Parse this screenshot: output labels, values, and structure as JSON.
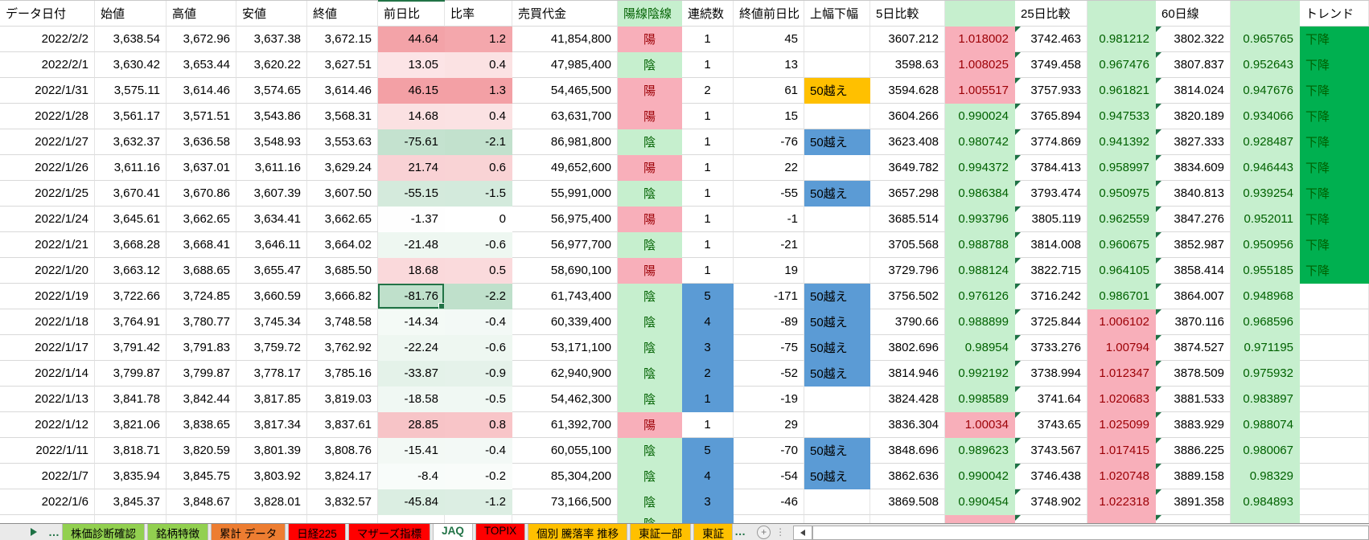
{
  "table": {
    "columns": [
      {
        "id": "date",
        "label": "データ日付"
      },
      {
        "id": "open",
        "label": "始値"
      },
      {
        "id": "high",
        "label": "高値"
      },
      {
        "id": "low",
        "label": "安値"
      },
      {
        "id": "close",
        "label": "終値"
      },
      {
        "id": "diff",
        "label": "前日比"
      },
      {
        "id": "ratio",
        "label": "比率"
      },
      {
        "id": "volume",
        "label": "売買代金"
      },
      {
        "id": "candle",
        "label": "陽線陰線"
      },
      {
        "id": "streak",
        "label": "連続数"
      },
      {
        "id": "close_diff",
        "label": "終値前日比"
      },
      {
        "id": "range",
        "label": "上幅下幅"
      },
      {
        "id": "d5",
        "label": "5日比較"
      },
      {
        "id": "d5r",
        "label": ""
      },
      {
        "id": "d25",
        "label": "25日比較"
      },
      {
        "id": "d25r",
        "label": ""
      },
      {
        "id": "d60",
        "label": "60日線"
      },
      {
        "id": "d60r",
        "label": ""
      },
      {
        "id": "trend",
        "label": "トレンド"
      }
    ],
    "rows": [
      {
        "date": "2022/2/2",
        "open": "3,638.54",
        "high": "3,672.96",
        "low": "3,637.38",
        "close": "3,672.15",
        "diff": "44.64",
        "ratio": "1.2",
        "volume": "41,854,800",
        "candle": "陽",
        "streak": "1",
        "streak_blue": false,
        "close_diff": "45",
        "range": "",
        "range_color": "",
        "d5": "3607.212",
        "d5r": "1.018002",
        "d25": "3742.463",
        "d25r": "0.981212",
        "d60": "3802.322",
        "d60r": "0.965765",
        "trend": "下降",
        "selected": false
      },
      {
        "date": "2022/2/1",
        "open": "3,630.42",
        "high": "3,653.44",
        "low": "3,620.22",
        "close": "3,627.51",
        "diff": "13.05",
        "ratio": "0.4",
        "volume": "47,985,400",
        "candle": "陰",
        "streak": "1",
        "streak_blue": false,
        "close_diff": "13",
        "range": "",
        "range_color": "",
        "d5": "3598.63",
        "d5r": "1.008025",
        "d25": "3749.458",
        "d25r": "0.967476",
        "d60": "3807.837",
        "d60r": "0.952643",
        "trend": "下降",
        "selected": false
      },
      {
        "date": "2022/1/31",
        "open": "3,575.11",
        "high": "3,614.46",
        "low": "3,574.65",
        "close": "3,614.46",
        "diff": "46.15",
        "ratio": "1.3",
        "volume": "54,465,500",
        "candle": "陽",
        "streak": "2",
        "streak_blue": false,
        "close_diff": "61",
        "range": "50越え",
        "range_color": "gold",
        "d5": "3594.628",
        "d5r": "1.005517",
        "d25": "3757.933",
        "d25r": "0.961821",
        "d60": "3814.024",
        "d60r": "0.947676",
        "trend": "下降",
        "selected": false
      },
      {
        "date": "2022/1/28",
        "open": "3,561.17",
        "high": "3,571.51",
        "low": "3,543.86",
        "close": "3,568.31",
        "diff": "14.68",
        "ratio": "0.4",
        "volume": "63,631,700",
        "candle": "陽",
        "streak": "1",
        "streak_blue": false,
        "close_diff": "15",
        "range": "",
        "range_color": "",
        "d5": "3604.266",
        "d5r": "0.990024",
        "d25": "3765.894",
        "d25r": "0.947533",
        "d60": "3820.189",
        "d60r": "0.934066",
        "trend": "下降",
        "selected": false
      },
      {
        "date": "2022/1/27",
        "open": "3,632.37",
        "high": "3,636.58",
        "low": "3,548.93",
        "close": "3,553.63",
        "diff": "-75.61",
        "ratio": "-2.1",
        "volume": "86,981,800",
        "candle": "陰",
        "streak": "1",
        "streak_blue": false,
        "close_diff": "-76",
        "range": "50越え",
        "range_color": "blue",
        "d5": "3623.408",
        "d5r": "0.980742",
        "d25": "3774.869",
        "d25r": "0.941392",
        "d60": "3827.333",
        "d60r": "0.928487",
        "trend": "下降",
        "selected": false
      },
      {
        "date": "2022/1/26",
        "open": "3,611.16",
        "high": "3,637.01",
        "low": "3,611.16",
        "close": "3,629.24",
        "diff": "21.74",
        "ratio": "0.6",
        "volume": "49,652,600",
        "candle": "陽",
        "streak": "1",
        "streak_blue": false,
        "close_diff": "22",
        "range": "",
        "range_color": "",
        "d5": "3649.782",
        "d5r": "0.994372",
        "d25": "3784.413",
        "d25r": "0.958997",
        "d60": "3834.609",
        "d60r": "0.946443",
        "trend": "下降",
        "selected": false
      },
      {
        "date": "2022/1/25",
        "open": "3,670.41",
        "high": "3,670.86",
        "low": "3,607.39",
        "close": "3,607.50",
        "diff": "-55.15",
        "ratio": "-1.5",
        "volume": "55,991,000",
        "candle": "陰",
        "streak": "1",
        "streak_blue": false,
        "close_diff": "-55",
        "range": "50越え",
        "range_color": "blue",
        "d5": "3657.298",
        "d5r": "0.986384",
        "d25": "3793.474",
        "d25r": "0.950975",
        "d60": "3840.813",
        "d60r": "0.939254",
        "trend": "下降",
        "selected": false
      },
      {
        "date": "2022/1/24",
        "open": "3,645.61",
        "high": "3,662.65",
        "low": "3,634.41",
        "close": "3,662.65",
        "diff": "-1.37",
        "ratio": "0",
        "volume": "56,975,400",
        "candle": "陽",
        "streak": "1",
        "streak_blue": false,
        "close_diff": "-1",
        "range": "",
        "range_color": "",
        "d5": "3685.514",
        "d5r": "0.993796",
        "d25": "3805.119",
        "d25r": "0.962559",
        "d60": "3847.276",
        "d60r": "0.952011",
        "trend": "下降",
        "selected": false
      },
      {
        "date": "2022/1/21",
        "open": "3,668.28",
        "high": "3,668.41",
        "low": "3,646.11",
        "close": "3,664.02",
        "diff": "-21.48",
        "ratio": "-0.6",
        "volume": "56,977,700",
        "candle": "陰",
        "streak": "1",
        "streak_blue": false,
        "close_diff": "-21",
        "range": "",
        "range_color": "",
        "d5": "3705.568",
        "d5r": "0.988788",
        "d25": "3814.008",
        "d25r": "0.960675",
        "d60": "3852.987",
        "d60r": "0.950956",
        "trend": "下降",
        "selected": false
      },
      {
        "date": "2022/1/20",
        "open": "3,663.12",
        "high": "3,688.65",
        "low": "3,655.47",
        "close": "3,685.50",
        "diff": "18.68",
        "ratio": "0.5",
        "volume": "58,690,100",
        "candle": "陽",
        "streak": "1",
        "streak_blue": false,
        "close_diff": "19",
        "range": "",
        "range_color": "",
        "d5": "3729.796",
        "d5r": "0.988124",
        "d25": "3822.715",
        "d25r": "0.964105",
        "d60": "3858.414",
        "d60r": "0.955185",
        "trend": "下降",
        "selected": false
      },
      {
        "date": "2022/1/19",
        "open": "3,722.66",
        "high": "3,724.85",
        "low": "3,660.59",
        "close": "3,666.82",
        "diff": "-81.76",
        "ratio": "-2.2",
        "volume": "61,743,400",
        "candle": "陰",
        "streak": "5",
        "streak_blue": true,
        "close_diff": "-171",
        "range": "50越え",
        "range_color": "blue",
        "d5": "3756.502",
        "d5r": "0.976126",
        "d25": "3716.242",
        "d25r": "0.986701",
        "d60": "3864.007",
        "d60r": "0.948968",
        "trend": "",
        "selected": true
      },
      {
        "date": "2022/1/18",
        "open": "3,764.91",
        "high": "3,780.77",
        "low": "3,745.34",
        "close": "3,748.58",
        "diff": "-14.34",
        "ratio": "-0.4",
        "volume": "60,339,400",
        "candle": "陰",
        "streak": "4",
        "streak_blue": true,
        "close_diff": "-89",
        "range": "50越え",
        "range_color": "blue",
        "d5": "3790.66",
        "d5r": "0.988899",
        "d25": "3725.844",
        "d25r": "1.006102",
        "d60": "3870.116",
        "d60r": "0.968596",
        "trend": "",
        "selected": false
      },
      {
        "date": "2022/1/17",
        "open": "3,791.42",
        "high": "3,791.83",
        "low": "3,759.72",
        "close": "3,762.92",
        "diff": "-22.24",
        "ratio": "-0.6",
        "volume": "53,171,100",
        "candle": "陰",
        "streak": "3",
        "streak_blue": true,
        "close_diff": "-75",
        "range": "50越え",
        "range_color": "blue",
        "d5": "3802.696",
        "d5r": "0.98954",
        "d25": "3733.276",
        "d25r": "1.00794",
        "d60": "3874.527",
        "d60r": "0.971195",
        "trend": "",
        "selected": false
      },
      {
        "date": "2022/1/14",
        "open": "3,799.87",
        "high": "3,799.87",
        "low": "3,778.17",
        "close": "3,785.16",
        "diff": "-33.87",
        "ratio": "-0.9",
        "volume": "62,940,900",
        "candle": "陰",
        "streak": "2",
        "streak_blue": true,
        "close_diff": "-52",
        "range": "50越え",
        "range_color": "blue",
        "d5": "3814.946",
        "d5r": "0.992192",
        "d25": "3738.994",
        "d25r": "1.012347",
        "d60": "3878.509",
        "d60r": "0.975932",
        "trend": "",
        "selected": false
      },
      {
        "date": "2022/1/13",
        "open": "3,841.78",
        "high": "3,842.44",
        "low": "3,817.85",
        "close": "3,819.03",
        "diff": "-18.58",
        "ratio": "-0.5",
        "volume": "54,462,300",
        "candle": "陰",
        "streak": "1",
        "streak_blue": true,
        "close_diff": "-19",
        "range": "",
        "range_color": "",
        "d5": "3824.428",
        "d5r": "0.998589",
        "d25": "3741.64",
        "d25r": "1.020683",
        "d60": "3881.533",
        "d60r": "0.983897",
        "trend": "",
        "selected": false
      },
      {
        "date": "2022/1/12",
        "open": "3,821.06",
        "high": "3,838.65",
        "low": "3,817.34",
        "close": "3,837.61",
        "diff": "28.85",
        "ratio": "0.8",
        "volume": "61,392,700",
        "candle": "陽",
        "streak": "1",
        "streak_blue": false,
        "close_diff": "29",
        "range": "",
        "range_color": "",
        "d5": "3836.304",
        "d5r": "1.00034",
        "d25": "3743.65",
        "d25r": "1.025099",
        "d60": "3883.929",
        "d60r": "0.988074",
        "trend": "",
        "selected": false
      },
      {
        "date": "2022/1/11",
        "open": "3,818.71",
        "high": "3,820.59",
        "low": "3,801.39",
        "close": "3,808.76",
        "diff": "-15.41",
        "ratio": "-0.4",
        "volume": "60,055,100",
        "candle": "陰",
        "streak": "5",
        "streak_blue": true,
        "close_diff": "-70",
        "range": "50越え",
        "range_color": "blue",
        "d5": "3848.696",
        "d5r": "0.989623",
        "d25": "3743.567",
        "d25r": "1.017415",
        "d60": "3886.225",
        "d60r": "0.980067",
        "trend": "",
        "selected": false
      },
      {
        "date": "2022/1/7",
        "open": "3,835.94",
        "high": "3,845.75",
        "low": "3,803.92",
        "close": "3,824.17",
        "diff": "-8.4",
        "ratio": "-0.2",
        "volume": "85,304,200",
        "candle": "陰",
        "streak": "4",
        "streak_blue": true,
        "close_diff": "-54",
        "range": "50越え",
        "range_color": "blue",
        "d5": "3862.636",
        "d5r": "0.990042",
        "d25": "3746.438",
        "d25r": "1.020748",
        "d60": "3889.158",
        "d60r": "0.98329",
        "trend": "",
        "selected": false
      },
      {
        "date": "2022/1/6",
        "open": "3,845.37",
        "high": "3,848.67",
        "low": "3,828.01",
        "close": "3,832.57",
        "diff": "-45.84",
        "ratio": "-1.2",
        "volume": "73,166,500",
        "candle": "陰",
        "streak": "3",
        "streak_blue": true,
        "close_diff": "-46",
        "range": "",
        "range_color": "",
        "d5": "3869.508",
        "d5r": "0.990454",
        "d25": "3748.902",
        "d25r": "1.022318",
        "d60": "3891.358",
        "d60r": "0.984893",
        "trend": "",
        "selected": false
      }
    ],
    "partial_row": {
      "candle": "陰",
      "streak_blue": true,
      "d5r_state": "up",
      "d25r_state": "up",
      "d60r_state": "down"
    }
  },
  "colors": {
    "good_bg": "#C6EFCE",
    "good_fg": "#006100",
    "bad_bg": "#F8AFBA",
    "bad_fg": "#9C0006",
    "blue": "#5B9BD5",
    "gold": "#FFC000",
    "trend_bg": "#00B050",
    "trend_fg": "#006100",
    "selection": "#217346",
    "diff_pos_max": "#F3A0A5",
    "diff_neg_max": "#BFE0CB"
  },
  "tabs": {
    "items": [
      {
        "label": "株価診断確認",
        "color": "green",
        "truncated": false
      },
      {
        "label": "銘柄特徴",
        "color": "green",
        "truncated": false
      },
      {
        "label": "累計 データ",
        "color": "orange",
        "truncated": false
      },
      {
        "label": "日経225",
        "color": "red",
        "truncated": false
      },
      {
        "label": "マザーズ指標",
        "color": "red",
        "truncated": false
      },
      {
        "label": "JAQ",
        "color": "active",
        "truncated": false
      },
      {
        "label": "TOPIX",
        "color": "red",
        "truncated": false
      },
      {
        "label": "個別 騰落率 推移",
        "color": "gold",
        "truncated": false
      },
      {
        "label": "東証一部",
        "color": "gold",
        "truncated": false
      },
      {
        "label": "東証",
        "color": "gold",
        "truncated": true
      }
    ],
    "tab_colors": {
      "green": "#92D050",
      "orange": "#ED7D31",
      "red": "#FF0000",
      "gold": "#FFC000",
      "active_bg": "#FFFFFF",
      "active_fg": "#217346"
    },
    "icons": {
      "nav_forward": "▶",
      "ellipsis": "…",
      "add_sheet": "+",
      "scroll_left": "◀",
      "kebab": "⋮"
    }
  }
}
